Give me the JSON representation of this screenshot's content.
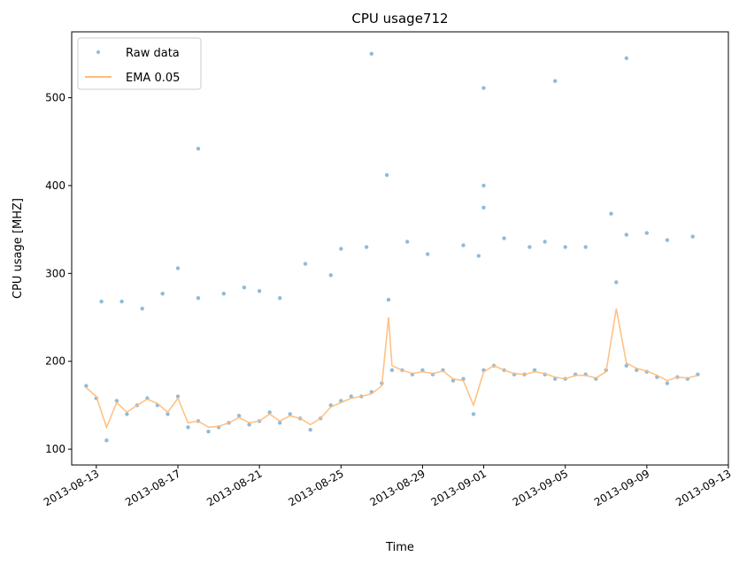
{
  "chart_data": {
    "type": "scatter",
    "title": "CPU usage712",
    "xlabel": "Time",
    "ylabel": "CPU usage [MHZ]",
    "x_ticks": [
      "2013-08-13",
      "2013-08-17",
      "2013-08-21",
      "2013-08-25",
      "2013-08-29",
      "2013-09-01",
      "2013-09-05",
      "2013-09-09",
      "2013-09-13"
    ],
    "y_ticks": [
      100,
      200,
      300,
      400,
      500
    ],
    "xlim": [
      "2013-08-11T19:00",
      "2013-09-13T00:00"
    ],
    "ylim": [
      82,
      575
    ],
    "legend_position": "upper left",
    "grid": false,
    "series": [
      {
        "name": "Raw data",
        "style": "points",
        "color": "#1f77b4",
        "x": [
          "2013-08-12T12:00",
          "2013-08-13T00:00",
          "2013-08-13T12:00",
          "2013-08-14T00:00",
          "2013-08-14T12:00",
          "2013-08-15T00:00",
          "2013-08-15T12:00",
          "2013-08-16T00:00",
          "2013-08-16T12:00",
          "2013-08-17T00:00",
          "2013-08-17T12:00",
          "2013-08-18T00:00",
          "2013-08-18T12:00",
          "2013-08-19T00:00",
          "2013-08-19T12:00",
          "2013-08-20T00:00",
          "2013-08-20T12:00",
          "2013-08-21T00:00",
          "2013-08-21T12:00",
          "2013-08-22T00:00",
          "2013-08-22T12:00",
          "2013-08-23T00:00",
          "2013-08-23T12:00",
          "2013-08-24T00:00",
          "2013-08-24T12:00",
          "2013-08-25T00:00",
          "2013-08-25T12:00",
          "2013-08-26T00:00",
          "2013-08-26T12:00",
          "2013-08-27T00:00",
          "2013-08-27T08:00",
          "2013-08-27T12:00",
          "2013-08-28T00:00",
          "2013-08-28T12:00",
          "2013-08-29T00:00",
          "2013-08-29T12:00",
          "2013-08-30T00:00",
          "2013-08-30T12:00",
          "2013-08-31T00:00",
          "2013-08-31T12:00",
          "2013-09-01T00:00",
          "2013-09-01T12:00",
          "2013-09-02T00:00",
          "2013-09-02T12:00",
          "2013-09-03T00:00",
          "2013-09-03T12:00",
          "2013-09-04T00:00",
          "2013-09-04T12:00",
          "2013-09-05T00:00",
          "2013-09-05T12:00",
          "2013-09-06T00:00",
          "2013-09-06T12:00",
          "2013-09-07T00:00",
          "2013-09-07T12:00",
          "2013-09-08T00:00",
          "2013-09-08T12:00",
          "2013-09-09T00:00",
          "2013-09-09T12:00",
          "2013-09-10T00:00",
          "2013-09-10T12:00",
          "2013-09-11T00:00",
          "2013-09-11T12:00"
        ],
        "y": [
          172,
          158,
          110,
          155,
          140,
          150,
          158,
          150,
          140,
          160,
          125,
          132,
          120,
          125,
          130,
          138,
          128,
          132,
          142,
          130,
          140,
          135,
          122,
          135,
          150,
          155,
          160,
          160,
          165,
          175,
          270,
          190,
          190,
          185,
          190,
          185,
          190,
          178,
          180,
          140,
          190,
          195,
          190,
          185,
          185,
          190,
          185,
          180,
          180,
          185,
          185,
          180,
          190,
          290,
          195,
          190,
          188,
          182,
          175,
          182,
          180,
          185
        ]
      },
      {
        "name": "EMA 0.05",
        "style": "line",
        "color": "#ffbb78",
        "x": [
          "2013-08-12T12:00",
          "2013-08-13T00:00",
          "2013-08-13T12:00",
          "2013-08-14T00:00",
          "2013-08-14T12:00",
          "2013-08-15T00:00",
          "2013-08-15T12:00",
          "2013-08-16T00:00",
          "2013-08-16T12:00",
          "2013-08-17T00:00",
          "2013-08-17T12:00",
          "2013-08-18T00:00",
          "2013-08-18T12:00",
          "2013-08-19T00:00",
          "2013-08-19T12:00",
          "2013-08-20T00:00",
          "2013-08-20T12:00",
          "2013-08-21T00:00",
          "2013-08-21T12:00",
          "2013-08-22T00:00",
          "2013-08-22T12:00",
          "2013-08-23T00:00",
          "2013-08-23T12:00",
          "2013-08-24T00:00",
          "2013-08-24T12:00",
          "2013-08-25T00:00",
          "2013-08-25T12:00",
          "2013-08-26T00:00",
          "2013-08-26T12:00",
          "2013-08-27T00:00",
          "2013-08-27T08:00",
          "2013-08-27T12:00",
          "2013-08-28T00:00",
          "2013-08-28T12:00",
          "2013-08-29T00:00",
          "2013-08-29T12:00",
          "2013-08-30T00:00",
          "2013-08-30T12:00",
          "2013-08-31T00:00",
          "2013-08-31T12:00",
          "2013-09-01T00:00",
          "2013-09-01T12:00",
          "2013-09-02T00:00",
          "2013-09-02T12:00",
          "2013-09-03T00:00",
          "2013-09-03T12:00",
          "2013-09-04T00:00",
          "2013-09-04T12:00",
          "2013-09-05T00:00",
          "2013-09-05T12:00",
          "2013-09-06T00:00",
          "2013-09-06T12:00",
          "2013-09-07T00:00",
          "2013-09-07T12:00",
          "2013-09-08T00:00",
          "2013-09-08T12:00",
          "2013-09-09T00:00",
          "2013-09-09T12:00",
          "2013-09-10T00:00",
          "2013-09-10T12:00",
          "2013-09-11T00:00",
          "2013-09-11T12:00"
        ],
        "y": [
          170,
          160,
          125,
          153,
          142,
          150,
          157,
          152,
          142,
          158,
          130,
          132,
          125,
          126,
          130,
          136,
          130,
          132,
          140,
          132,
          138,
          135,
          128,
          135,
          148,
          153,
          158,
          160,
          163,
          172,
          250,
          195,
          190,
          186,
          188,
          186,
          189,
          180,
          178,
          150,
          188,
          195,
          190,
          186,
          185,
          188,
          186,
          182,
          180,
          184,
          184,
          181,
          188,
          260,
          198,
          192,
          189,
          184,
          178,
          182,
          181,
          184
        ]
      }
    ],
    "outliers": {
      "x": [
        "2013-08-13T06:00",
        "2013-08-14T06:00",
        "2013-08-15T06:00",
        "2013-08-16T06:00",
        "2013-08-17T00:00",
        "2013-08-18T00:00",
        "2013-08-18T00:00",
        "2013-08-19T06:00",
        "2013-08-20T06:00",
        "2013-08-21T00:00",
        "2013-08-22T00:00",
        "2013-08-23T06:00",
        "2013-08-24T12:00",
        "2013-08-25T00:00",
        "2013-08-26T06:00",
        "2013-08-26T12:00",
        "2013-08-27T06:00",
        "2013-08-28T06:00",
        "2013-08-29T06:00",
        "2013-08-31T00:00",
        "2013-08-31T18:00",
        "2013-09-01T00:00",
        "2013-09-01T00:00",
        "2013-09-01T00:00",
        "2013-09-02T00:00",
        "2013-09-03T06:00",
        "2013-09-04T00:00",
        "2013-09-04T12:00",
        "2013-09-05T00:00",
        "2013-09-06T00:00",
        "2013-09-07T06:00",
        "2013-09-08T00:00",
        "2013-09-08T00:00",
        "2013-09-09T00:00",
        "2013-09-10T00:00",
        "2013-09-11T06:00"
      ],
      "y": [
        268,
        268,
        260,
        277,
        306,
        442,
        272,
        277,
        284,
        280,
        272,
        311,
        298,
        328,
        330,
        550,
        412,
        336,
        322,
        332,
        320,
        511,
        400,
        375,
        340,
        330,
        336,
        519,
        330,
        330,
        368,
        545,
        344,
        346,
        338,
        342
      ]
    }
  }
}
